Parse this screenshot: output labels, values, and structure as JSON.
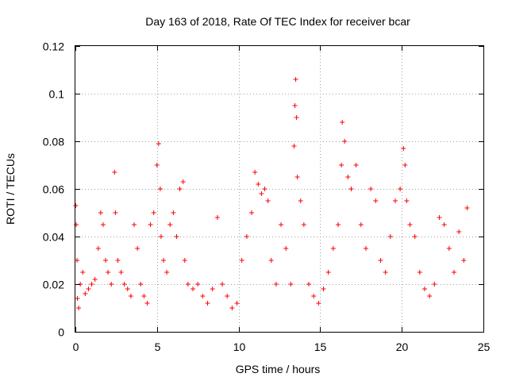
{
  "chart_data": {
    "type": "scatter",
    "title": "Day 163 of 2018, Rate Of TEC Index for receiver bcar",
    "xlabel": "GPS time / hours",
    "ylabel": "ROTI / TECUs",
    "xlim": [
      0,
      25
    ],
    "ylim": [
      0,
      0.12
    ],
    "x_ticks": [
      0,
      5,
      10,
      15,
      20,
      25
    ],
    "x_tick_labels": [
      "0",
      "5",
      "10",
      "15",
      "20",
      "25"
    ],
    "y_ticks": [
      0,
      0.02,
      0.04,
      0.06,
      0.08,
      0.1,
      0.12
    ],
    "y_tick_labels": [
      "0",
      "0.02",
      "0.04",
      "0.06",
      "0.08",
      "0.1",
      "0.12"
    ],
    "grid": true,
    "marker": "+",
    "marker_color": "#ff0000",
    "series": [
      {
        "name": "ROTI",
        "x": [
          0.02,
          0.05,
          0.1,
          0.12,
          0.2,
          0.3,
          0.45,
          0.6,
          0.8,
          1.0,
          1.2,
          1.4,
          1.55,
          1.7,
          1.85,
          2.0,
          2.2,
          2.4,
          2.45,
          2.6,
          2.8,
          3.0,
          3.2,
          3.4,
          3.6,
          3.8,
          4.0,
          4.2,
          4.4,
          4.6,
          4.8,
          5.0,
          5.1,
          5.2,
          5.25,
          5.4,
          5.6,
          5.8,
          6.0,
          6.2,
          6.4,
          6.6,
          6.7,
          6.9,
          7.2,
          7.5,
          7.8,
          8.1,
          8.4,
          8.7,
          9.0,
          9.3,
          9.6,
          9.9,
          10.2,
          10.5,
          10.8,
          11.0,
          11.2,
          11.4,
          11.6,
          11.8,
          12.0,
          12.3,
          12.6,
          12.9,
          13.2,
          13.4,
          13.45,
          13.5,
          13.55,
          13.6,
          13.8,
          14.0,
          14.3,
          14.6,
          14.9,
          15.2,
          15.5,
          15.8,
          16.1,
          16.3,
          16.35,
          16.5,
          16.7,
          16.9,
          17.2,
          17.5,
          17.8,
          18.1,
          18.4,
          18.7,
          19.0,
          19.3,
          19.6,
          19.9,
          20.1,
          20.2,
          20.3,
          20.5,
          20.8,
          21.1,
          21.4,
          21.7,
          22.0,
          22.3,
          22.6,
          22.9,
          23.2,
          23.5,
          23.8,
          24.0
        ],
        "y": [
          0.053,
          0.045,
          0.03,
          0.014,
          0.01,
          0.02,
          0.025,
          0.016,
          0.018,
          0.02,
          0.022,
          0.035,
          0.05,
          0.045,
          0.03,
          0.025,
          0.02,
          0.067,
          0.05,
          0.03,
          0.025,
          0.02,
          0.018,
          0.015,
          0.045,
          0.035,
          0.02,
          0.015,
          0.012,
          0.045,
          0.05,
          0.07,
          0.079,
          0.06,
          0.04,
          0.03,
          0.025,
          0.045,
          0.05,
          0.04,
          0.06,
          0.063,
          0.03,
          0.02,
          0.018,
          0.02,
          0.015,
          0.012,
          0.018,
          0.048,
          0.02,
          0.015,
          0.01,
          0.012,
          0.03,
          0.04,
          0.05,
          0.067,
          0.062,
          0.058,
          0.06,
          0.055,
          0.03,
          0.02,
          0.045,
          0.035,
          0.02,
          0.078,
          0.095,
          0.106,
          0.09,
          0.065,
          0.055,
          0.045,
          0.02,
          0.015,
          0.012,
          0.018,
          0.025,
          0.035,
          0.045,
          0.07,
          0.088,
          0.08,
          0.065,
          0.06,
          0.07,
          0.045,
          0.035,
          0.06,
          0.055,
          0.03,
          0.025,
          0.04,
          0.055,
          0.06,
          0.077,
          0.07,
          0.055,
          0.045,
          0.04,
          0.025,
          0.018,
          0.015,
          0.02,
          0.048,
          0.045,
          0.035,
          0.025,
          0.042,
          0.03,
          0.052
        ]
      }
    ]
  }
}
